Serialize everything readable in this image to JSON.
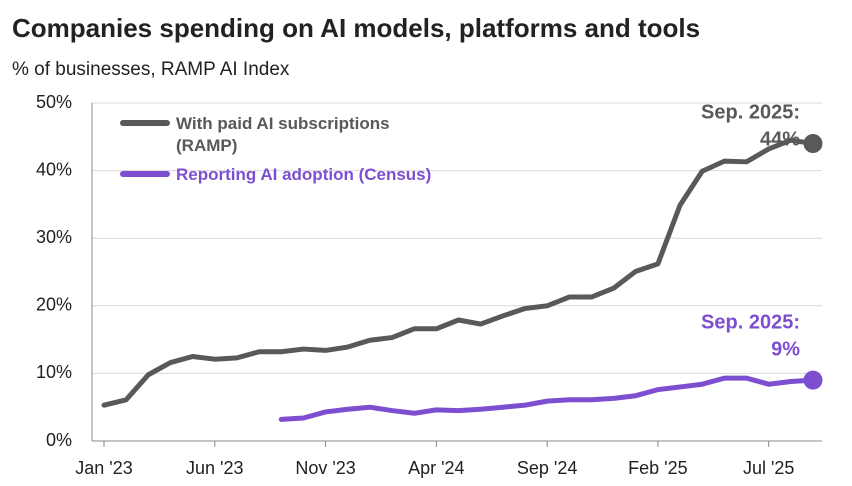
{
  "chart_data": {
    "type": "line",
    "title": "Companies spending on AI models, platforms and tools",
    "subtitle": "% of businesses, RAMP AI Index",
    "categories": [
      "Jan '23",
      null,
      null,
      null,
      null,
      "Jun '23",
      null,
      null,
      null,
      null,
      "Nov '23",
      null,
      null,
      null,
      null,
      "Apr '24",
      null,
      null,
      null,
      null,
      "Sep '24",
      null,
      null,
      null,
      null,
      "Feb '25",
      null,
      null,
      null,
      null,
      "Jul '25",
      null,
      null
    ],
    "series": [
      {
        "name": "With paid AI subscriptions (RAMP)",
        "color": "#58595b",
        "values": [
          5.3,
          6.1,
          9.8,
          11.6,
          12.5,
          12.1,
          12.3,
          13.2,
          13.2,
          13.6,
          13.4,
          13.9,
          14.9,
          15.3,
          16.6,
          16.6,
          17.9,
          17.3,
          18.5,
          19.6,
          20.0,
          21.3,
          21.3,
          22.6,
          25.1,
          26.2,
          34.9,
          39.9,
          41.4,
          41.3,
          43.2,
          44.5,
          44.0
        ]
      },
      {
        "name": "Reporting AI adoption (Census)",
        "color": "#7d4fd0",
        "values": [
          null,
          null,
          null,
          null,
          null,
          null,
          null,
          null,
          3.2,
          3.4,
          4.3,
          4.7,
          5.0,
          4.5,
          4.1,
          4.6,
          4.5,
          4.7,
          5.0,
          5.3,
          5.9,
          6.1,
          6.1,
          6.3,
          6.7,
          7.6,
          8.0,
          8.4,
          9.3,
          9.3,
          8.4,
          8.8,
          9.0
        ]
      }
    ],
    "annotations": [
      {
        "lines": [
          "Sep. 2025:",
          "44%"
        ],
        "color": "#58595b"
      },
      {
        "lines": [
          "Sep. 2025:",
          "9%"
        ],
        "color": "#7d4fd0"
      }
    ],
    "ylim": [
      0,
      50
    ],
    "yticks": [
      {
        "value": 0,
        "label": "0%"
      },
      {
        "value": 10,
        "label": "10%"
      },
      {
        "value": 20,
        "label": "20%"
      },
      {
        "value": 30,
        "label": "30%"
      },
      {
        "value": 40,
        "label": "40%"
      },
      {
        "value": 50,
        "label": "50%"
      }
    ],
    "grid": true
  }
}
